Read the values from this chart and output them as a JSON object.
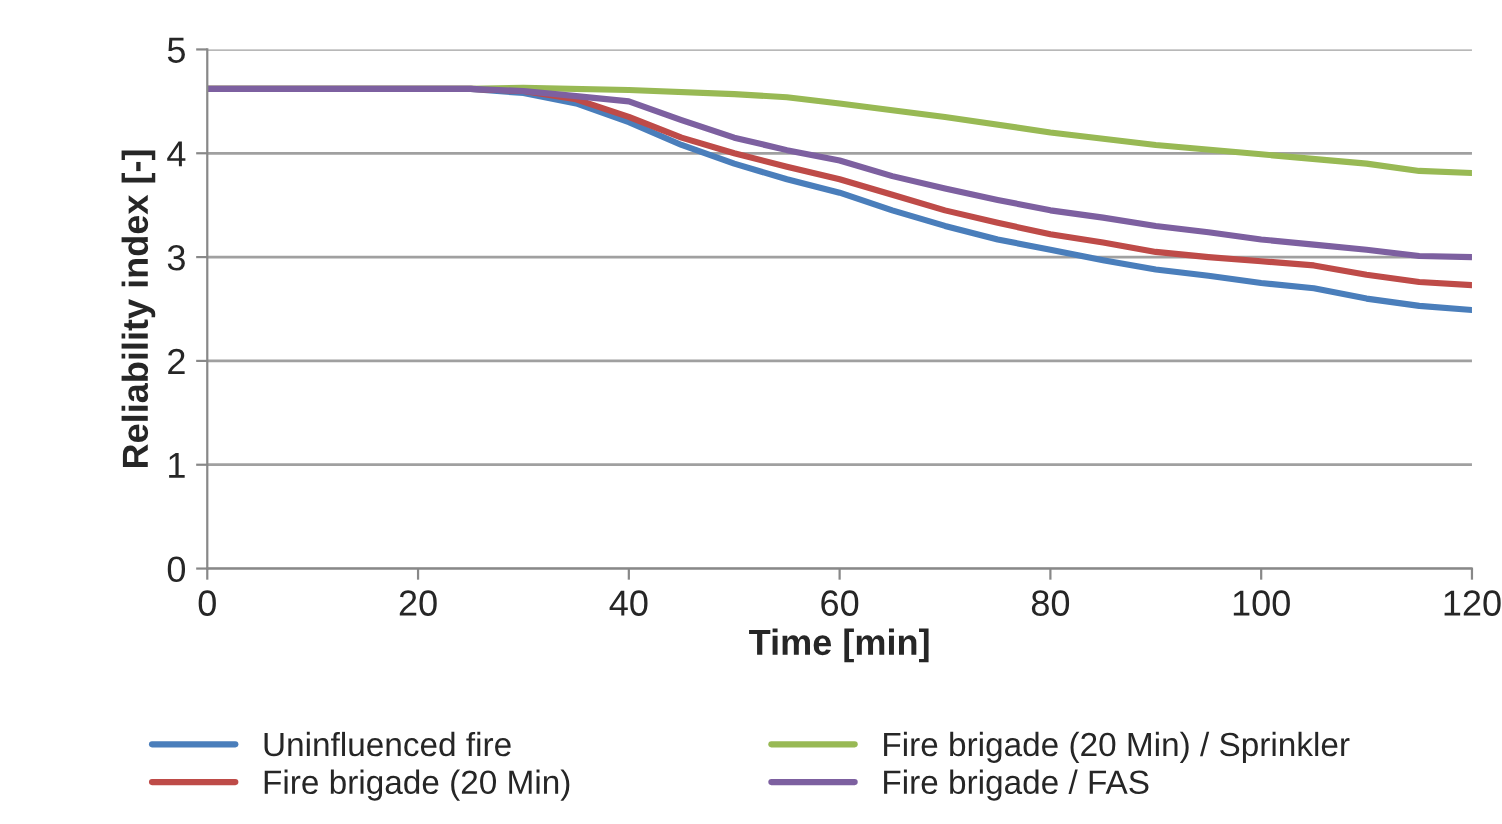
{
  "chart_data": {
    "type": "line",
    "xlabel": "Time [min]",
    "ylabel": "Reliability index [-]",
    "xlim": [
      0,
      120
    ],
    "xticks": [
      0,
      20,
      40,
      60,
      80,
      100,
      120
    ],
    "ylim": [
      0,
      5
    ],
    "yticks": [
      0,
      1,
      2,
      3,
      4,
      5
    ],
    "grid": "y",
    "legend": "bottom",
    "line_style": "solid",
    "marker": "none",
    "series": [
      {
        "name": "Uninfluenced fire",
        "color": "#4a7ebb",
        "x": [
          0,
          25,
          30,
          35,
          40,
          45,
          50,
          55,
          60,
          65,
          70,
          75,
          80,
          85,
          90,
          95,
          100,
          105,
          110,
          115,
          120
        ],
        "values": [
          4.62,
          4.62,
          4.58,
          4.48,
          4.3,
          4.08,
          3.9,
          3.75,
          3.62,
          3.45,
          3.3,
          3.17,
          3.07,
          2.97,
          2.88,
          2.82,
          2.75,
          2.7,
          2.6,
          2.53,
          2.49
        ]
      },
      {
        "name": "Fire brigade (20 Min)",
        "color": "#be4b48",
        "x": [
          0,
          25,
          30,
          35,
          40,
          45,
          50,
          55,
          60,
          65,
          70,
          75,
          80,
          85,
          90,
          95,
          100,
          105,
          110,
          115,
          120
        ],
        "values": [
          4.62,
          4.62,
          4.6,
          4.52,
          4.35,
          4.15,
          4.0,
          3.87,
          3.75,
          3.6,
          3.45,
          3.33,
          3.22,
          3.14,
          3.05,
          3.0,
          2.96,
          2.92,
          2.83,
          2.76,
          2.73
        ]
      },
      {
        "name": "Fire brigade (20 Min) / Sprinkler",
        "color": "#98b954",
        "x": [
          0,
          25,
          30,
          40,
          50,
          55,
          60,
          70,
          80,
          90,
          100,
          110,
          115,
          120
        ],
        "values": [
          4.62,
          4.62,
          4.63,
          4.61,
          4.57,
          4.54,
          4.48,
          4.35,
          4.2,
          4.08,
          3.99,
          3.9,
          3.83,
          3.81
        ]
      },
      {
        "name": "Fire brigade / FAS",
        "color": "#7d60a0",
        "x": [
          0,
          25,
          30,
          35,
          40,
          45,
          50,
          55,
          60,
          65,
          70,
          75,
          80,
          85,
          90,
          95,
          100,
          105,
          110,
          115,
          120
        ],
        "values": [
          4.62,
          4.62,
          4.6,
          4.55,
          4.5,
          4.32,
          4.15,
          4.03,
          3.93,
          3.78,
          3.66,
          3.55,
          3.45,
          3.38,
          3.3,
          3.24,
          3.17,
          3.12,
          3.07,
          3.01,
          3.0
        ]
      }
    ]
  }
}
